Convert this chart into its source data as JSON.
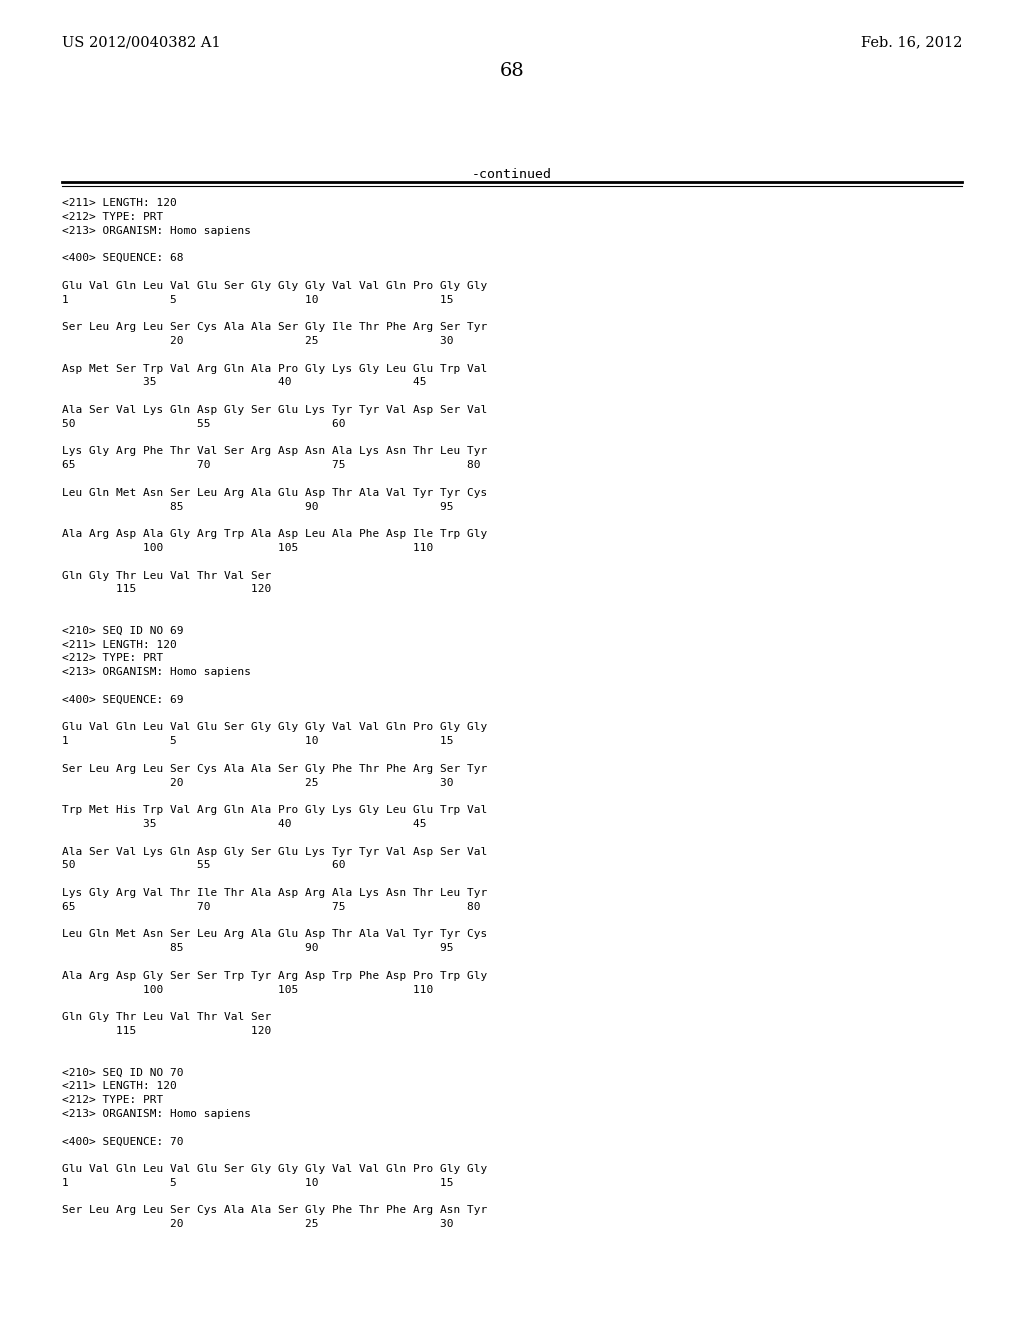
{
  "header_left": "US 2012/0040382 A1",
  "header_right": "Feb. 16, 2012",
  "page_number": "68",
  "continued_text": "-continued",
  "background_color": "#ffffff",
  "text_color": "#000000",
  "lines": [
    "<211> LENGTH: 120",
    "<212> TYPE: PRT",
    "<213> ORGANISM: Homo sapiens",
    "",
    "<400> SEQUENCE: 68",
    "",
    "Glu Val Gln Leu Val Glu Ser Gly Gly Gly Val Val Gln Pro Gly Gly",
    "1               5                   10                  15",
    "",
    "Ser Leu Arg Leu Ser Cys Ala Ala Ser Gly Ile Thr Phe Arg Ser Tyr",
    "                20                  25                  30",
    "",
    "Asp Met Ser Trp Val Arg Gln Ala Pro Gly Lys Gly Leu Glu Trp Val",
    "            35                  40                  45",
    "",
    "Ala Ser Val Lys Gln Asp Gly Ser Glu Lys Tyr Tyr Val Asp Ser Val",
    "50                  55                  60",
    "",
    "Lys Gly Arg Phe Thr Val Ser Arg Asp Asn Ala Lys Asn Thr Leu Tyr",
    "65                  70                  75                  80",
    "",
    "Leu Gln Met Asn Ser Leu Arg Ala Glu Asp Thr Ala Val Tyr Tyr Cys",
    "                85                  90                  95",
    "",
    "Ala Arg Asp Ala Gly Arg Trp Ala Asp Leu Ala Phe Asp Ile Trp Gly",
    "            100                 105                 110",
    "",
    "Gln Gly Thr Leu Val Thr Val Ser",
    "        115                 120",
    "",
    "",
    "<210> SEQ ID NO 69",
    "<211> LENGTH: 120",
    "<212> TYPE: PRT",
    "<213> ORGANISM: Homo sapiens",
    "",
    "<400> SEQUENCE: 69",
    "",
    "Glu Val Gln Leu Val Glu Ser Gly Gly Gly Val Val Gln Pro Gly Gly",
    "1               5                   10                  15",
    "",
    "Ser Leu Arg Leu Ser Cys Ala Ala Ser Gly Phe Thr Phe Arg Ser Tyr",
    "                20                  25                  30",
    "",
    "Trp Met His Trp Val Arg Gln Ala Pro Gly Lys Gly Leu Glu Trp Val",
    "            35                  40                  45",
    "",
    "Ala Ser Val Lys Gln Asp Gly Ser Glu Lys Tyr Tyr Val Asp Ser Val",
    "50                  55                  60",
    "",
    "Lys Gly Arg Val Thr Ile Thr Ala Asp Arg Ala Lys Asn Thr Leu Tyr",
    "65                  70                  75                  80",
    "",
    "Leu Gln Met Asn Ser Leu Arg Ala Glu Asp Thr Ala Val Tyr Tyr Cys",
    "                85                  90                  95",
    "",
    "Ala Arg Asp Gly Ser Ser Trp Tyr Arg Asp Trp Phe Asp Pro Trp Gly",
    "            100                 105                 110",
    "",
    "Gln Gly Thr Leu Val Thr Val Ser",
    "        115                 120",
    "",
    "",
    "<210> SEQ ID NO 70",
    "<211> LENGTH: 120",
    "<212> TYPE: PRT",
    "<213> ORGANISM: Homo sapiens",
    "",
    "<400> SEQUENCE: 70",
    "",
    "Glu Val Gln Leu Val Glu Ser Gly Gly Gly Val Val Gln Pro Gly Gly",
    "1               5                   10                  15",
    "",
    "Ser Leu Arg Leu Ser Cys Ala Ala Ser Gly Phe Thr Phe Arg Asn Tyr",
    "                20                  25                  30"
  ]
}
